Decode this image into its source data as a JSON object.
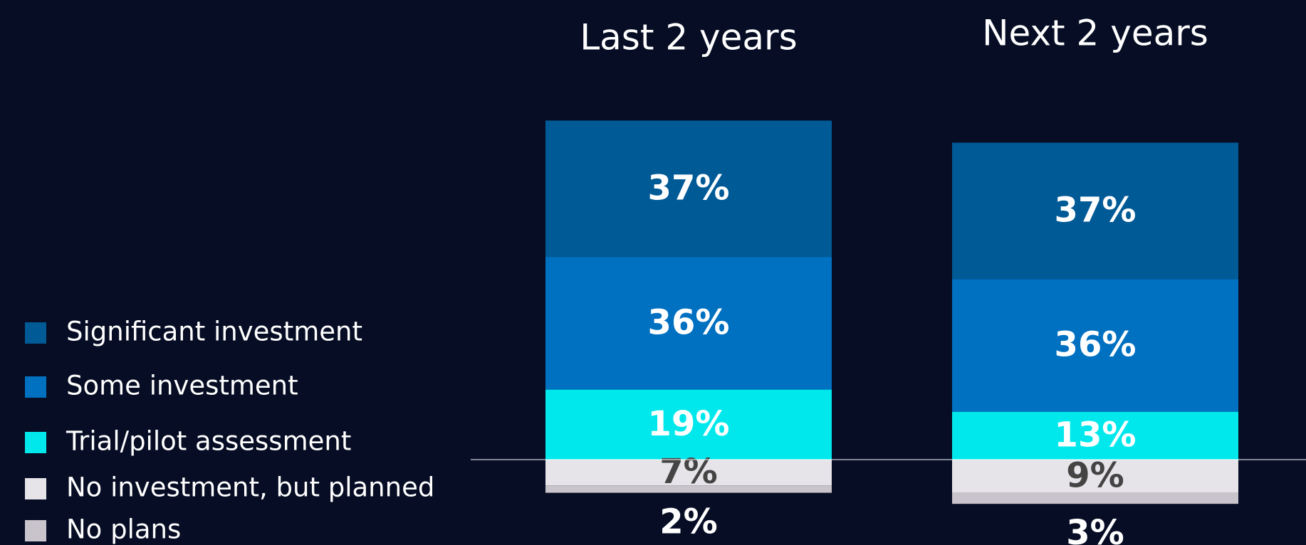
{
  "chart_data": {
    "type": "stacked_bar",
    "categories": [
      "Last 2 years",
      "Next 2 years"
    ],
    "series": [
      {
        "name": "Significant investment",
        "color": "#005a96",
        "label_color": "#ffffff",
        "side": "above",
        "values": [
          37,
          37
        ],
        "value_labels": [
          "37%",
          "37%"
        ]
      },
      {
        "name": "Some investment",
        "color": "#0070c0",
        "label_color": "#ffffff",
        "side": "above",
        "values": [
          36,
          36
        ],
        "value_labels": [
          "36%",
          "36%"
        ]
      },
      {
        "name": "Trial/pilot assessment",
        "color": "#00e8ec",
        "label_color": "#ffffff",
        "side": "above",
        "values": [
          19,
          13
        ],
        "value_labels": [
          "19%",
          "13%"
        ]
      },
      {
        "name": "No investment, but planned",
        "color": "#e6e4e8",
        "label_color": "#444444",
        "side": "below",
        "values": [
          7,
          9
        ],
        "value_labels": [
          "7%",
          "9%"
        ]
      },
      {
        "name": "No plans",
        "color": "#c9c3cb",
        "label_color": "#ffffff",
        "side": "below",
        "values": [
          2,
          3
        ],
        "value_labels": [
          "2%",
          "3%"
        ]
      }
    ]
  }
}
